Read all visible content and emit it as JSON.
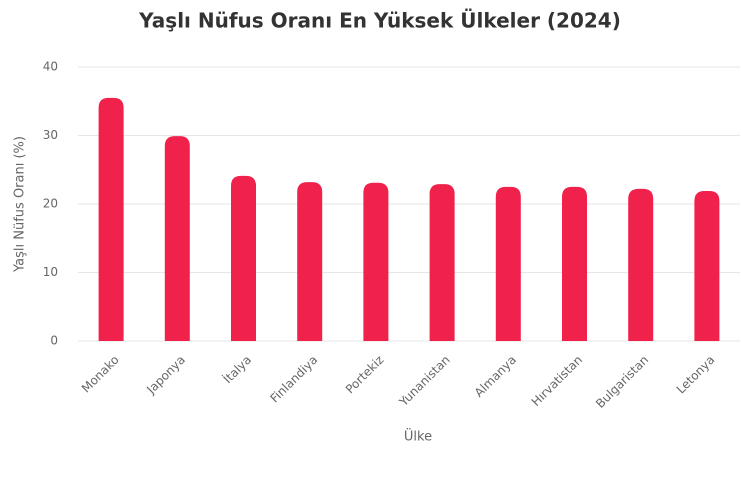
{
  "chart_data": {
    "type": "bar",
    "title": "Yaşlı Nüfus Oranı En Yüksek Ülkeler (2024)",
    "x_label": "Ülke",
    "y_label": "Yaşlı Nüfus Oranı (%)",
    "categories": [
      "Monako",
      "Japonya",
      "İtalya",
      "Finlandiya",
      "Portekiz",
      "Yunanistan",
      "Almanya",
      "Hırvatistan",
      "Bulgaristan",
      "Letonya"
    ],
    "values": [
      35.5,
      29.9,
      24.1,
      23.2,
      23.1,
      22.9,
      22.5,
      22.5,
      22.2,
      21.9
    ],
    "color": "#f0214b",
    "ylim": [
      0,
      40
    ],
    "yticks": [
      0,
      10,
      20,
      30,
      40
    ],
    "grid": true
  }
}
